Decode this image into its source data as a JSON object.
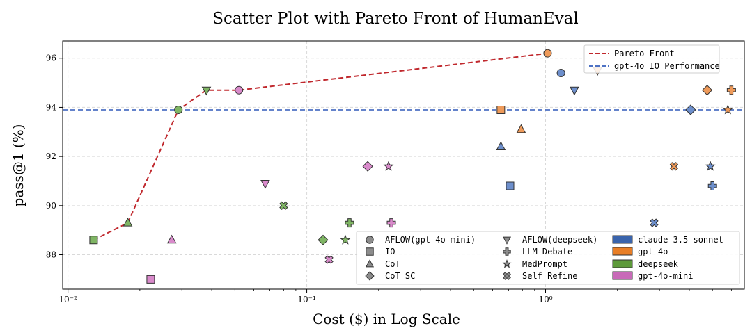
{
  "chart_data": {
    "type": "scatter",
    "title": "Scatter Plot with Pareto Front of HumanEval",
    "xlabel": "Cost ($) in Log Scale",
    "ylabel": "pass@1 (%)",
    "xscale": "log",
    "xlim": [
      0.0095,
      6.8
    ],
    "ylim": [
      86.6,
      96.7
    ],
    "x_ticks": [
      {
        "value": 0.01,
        "label": "10⁻²"
      },
      {
        "value": 0.1,
        "label": "10⁻¹"
      },
      {
        "value": 1,
        "label": "10⁰"
      }
    ],
    "y_ticks": [
      88,
      90,
      92,
      94,
      96
    ],
    "grid": true,
    "colors": {
      "claude-3.5-sonnet": "#6d8fcc",
      "gpt-4o": "#ee9a5a",
      "deepseek": "#7fb564",
      "gpt-4o-mini": "#d98acb",
      "pareto_line": "#c0282d",
      "io_line": "#4e72c4"
    },
    "legend_colors": {
      "claude-3.5-sonnet": "#3a64ac",
      "gpt-4o": "#e87e26",
      "deepseek": "#5d9a3a",
      "gpt-4o-mini": "#c86ab8"
    },
    "reference_line": {
      "name": "gpt-4o IO Performance",
      "y": 93.9
    },
    "pareto_front": {
      "name": "Pareto Front",
      "points": [
        [
          0.0128,
          88.6
        ],
        [
          0.0178,
          89.3
        ],
        [
          0.029,
          93.9
        ],
        [
          0.038,
          94.7
        ],
        [
          0.052,
          94.7
        ],
        [
          1.02,
          96.2
        ]
      ]
    },
    "points": [
      {
        "method": "AFLOW(gpt-4o-mini)",
        "model": "gpt-4o-mini",
        "x": 0.052,
        "y": 94.7
      },
      {
        "method": "AFLOW(gpt-4o-mini)",
        "model": "deepseek",
        "x": 0.029,
        "y": 93.9
      },
      {
        "method": "AFLOW(gpt-4o-mini)",
        "model": "gpt-4o",
        "x": 1.02,
        "y": 96.2
      },
      {
        "method": "AFLOW(gpt-4o-mini)",
        "model": "claude-3.5-sonnet",
        "x": 1.16,
        "y": 95.4
      },
      {
        "method": "AFLOW(deepseek)",
        "model": "deepseek",
        "x": 0.038,
        "y": 94.7
      },
      {
        "method": "AFLOW(deepseek)",
        "model": "gpt-4o-mini",
        "x": 0.067,
        "y": 90.9
      },
      {
        "method": "AFLOW(deepseek)",
        "model": "claude-3.5-sonnet",
        "x": 1.32,
        "y": 94.7
      },
      {
        "method": "AFLOW(deepseek)",
        "model": "gpt-4o",
        "x": 1.65,
        "y": 95.5
      },
      {
        "method": "IO",
        "model": "deepseek",
        "x": 0.0128,
        "y": 88.6
      },
      {
        "method": "IO",
        "model": "gpt-4o-mini",
        "x": 0.0222,
        "y": 87.0
      },
      {
        "method": "IO",
        "model": "gpt-4o",
        "x": 0.65,
        "y": 93.9
      },
      {
        "method": "IO",
        "model": "claude-3.5-sonnet",
        "x": 0.71,
        "y": 90.8
      },
      {
        "method": "CoT",
        "model": "deepseek",
        "x": 0.0178,
        "y": 89.3
      },
      {
        "method": "CoT",
        "model": "gpt-4o-mini",
        "x": 0.0272,
        "y": 88.6
      },
      {
        "method": "CoT",
        "model": "claude-3.5-sonnet",
        "x": 0.65,
        "y": 92.4
      },
      {
        "method": "CoT",
        "model": "gpt-4o",
        "x": 0.79,
        "y": 93.1
      },
      {
        "method": "CoT SC",
        "model": "deepseek",
        "x": 0.117,
        "y": 88.6
      },
      {
        "method": "CoT SC",
        "model": "gpt-4o-mini",
        "x": 0.18,
        "y": 91.6
      },
      {
        "method": "CoT SC",
        "model": "claude-3.5-sonnet",
        "x": 4.05,
        "y": 93.9
      },
      {
        "method": "CoT SC",
        "model": "gpt-4o",
        "x": 4.75,
        "y": 94.7
      },
      {
        "method": "LLM Debate",
        "model": "deepseek",
        "x": 0.151,
        "y": 89.3
      },
      {
        "method": "LLM Debate",
        "model": "gpt-4o-mini",
        "x": 0.226,
        "y": 89.3
      },
      {
        "method": "LLM Debate",
        "model": "claude-3.5-sonnet",
        "x": 5.0,
        "y": 90.8
      },
      {
        "method": "LLM Debate",
        "model": "gpt-4o",
        "x": 6.0,
        "y": 94.7
      },
      {
        "method": "MedPrompt",
        "model": "deepseek",
        "x": 0.145,
        "y": 88.6
      },
      {
        "method": "MedPrompt",
        "model": "gpt-4o-mini",
        "x": 0.22,
        "y": 91.6
      },
      {
        "method": "MedPrompt",
        "model": "claude-3.5-sonnet",
        "x": 4.9,
        "y": 91.6
      },
      {
        "method": "MedPrompt",
        "model": "gpt-4o",
        "x": 5.8,
        "y": 93.9
      },
      {
        "method": "Self Refine",
        "model": "deepseek",
        "x": 0.08,
        "y": 90.0
      },
      {
        "method": "Self Refine",
        "model": "gpt-4o-mini",
        "x": 0.124,
        "y": 87.8
      },
      {
        "method": "Self Refine",
        "model": "claude-3.5-sonnet",
        "x": 2.85,
        "y": 89.3
      },
      {
        "method": "Self Refine",
        "model": "gpt-4o",
        "x": 3.45,
        "y": 91.6
      }
    ],
    "legend": {
      "placement": "top-right",
      "lines": [
        {
          "label": "Pareto Front",
          "key": "pareto_line"
        },
        {
          "label": "gpt-4o IO Performance",
          "key": "io_line"
        }
      ],
      "placement_2": "bottom-right",
      "methods": [
        {
          "label": "AFLOW(gpt-4o-mini)",
          "marker": "circle"
        },
        {
          "label": "IO",
          "marker": "square"
        },
        {
          "label": "CoT",
          "marker": "triangle-up"
        },
        {
          "label": "CoT SC",
          "marker": "diamond"
        },
        {
          "label": "AFLOW(deepseek)",
          "marker": "triangle-down"
        },
        {
          "label": "LLM Debate",
          "marker": "plus"
        },
        {
          "label": "MedPrompt",
          "marker": "star"
        },
        {
          "label": "Self Refine",
          "marker": "x"
        }
      ],
      "models": [
        {
          "label": "claude-3.5-sonnet"
        },
        {
          "label": "gpt-4o"
        },
        {
          "label": "deepseek"
        },
        {
          "label": "gpt-4o-mini"
        }
      ]
    }
  }
}
